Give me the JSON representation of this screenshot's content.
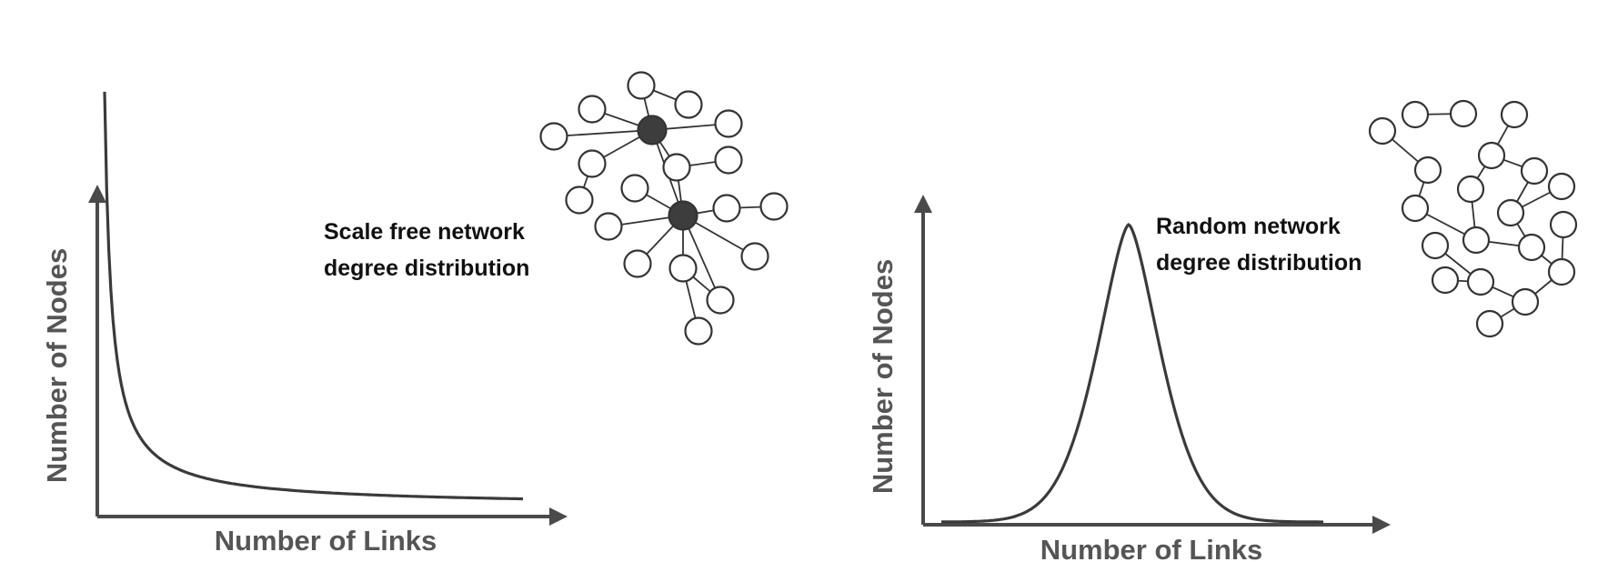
{
  "panels": {
    "scale_free": {
      "caption_line1": "Scale free network",
      "caption_line2": "degree distribution",
      "ylabel": "Number of Nodes",
      "xlabel": "Number of Links"
    },
    "random": {
      "caption_line1": "Random network",
      "caption_line2": "degree distribution",
      "ylabel": "Number of Nodes",
      "xlabel": "Number of Links"
    }
  },
  "chart_data": [
    {
      "type": "line",
      "curve": "power-law decay",
      "xlabel": "Number of Links",
      "ylabel": "Number of Nodes"
    },
    {
      "type": "line",
      "curve": "bell-shaped peak",
      "xlabel": "Number of Links",
      "ylabel": "Number of Nodes"
    }
  ],
  "colors": {
    "axis": "#4a4a4a",
    "axis_label": "#555555",
    "caption": "#111111",
    "hub_node": "#3d3d3d",
    "node_fill": "#ffffff"
  }
}
